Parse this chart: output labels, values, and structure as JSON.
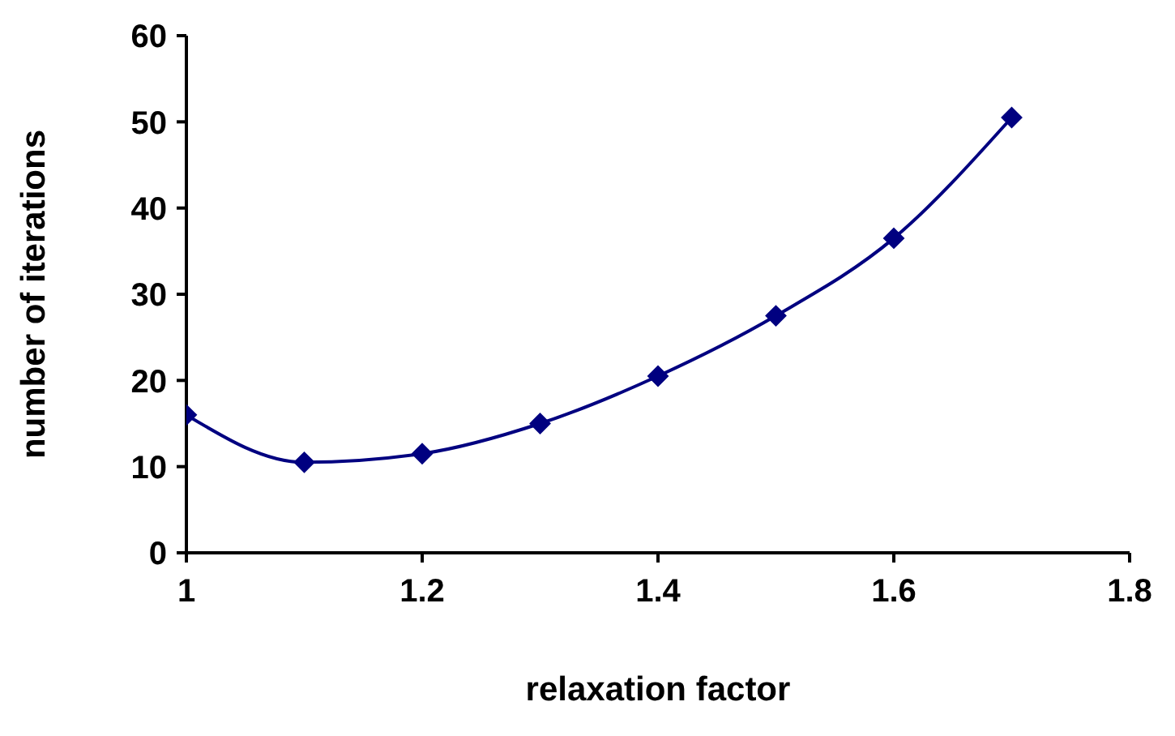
{
  "chart_data": {
    "type": "line",
    "xlabel": "relaxation factor",
    "ylabel": "number of iterations",
    "x": [
      1,
      1.1,
      1.2,
      1.3,
      1.4,
      1.5,
      1.6,
      1.7
    ],
    "series": [
      {
        "color": "#000080",
        "values": [
          16,
          10.5,
          11.5,
          15,
          20.5,
          27.5,
          36.5,
          50.5
        ]
      }
    ],
    "xlim": [
      1,
      1.8
    ],
    "xticks": [
      1,
      1.2,
      1.4,
      1.6,
      1.8
    ],
    "ylim": [
      0,
      60
    ],
    "yticks": [
      0,
      10,
      20,
      30,
      40,
      50,
      60
    ],
    "grid": false,
    "marker": "diamond",
    "line_style": "solid"
  }
}
